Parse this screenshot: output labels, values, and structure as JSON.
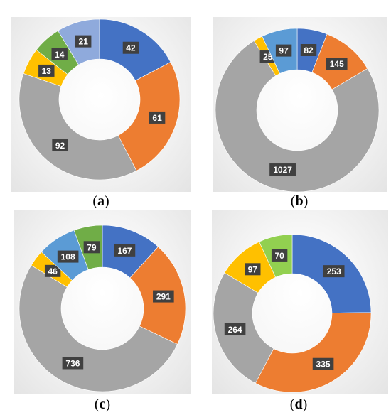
{
  "palette": {
    "blue": "#4472c4",
    "orange": "#ed7d31",
    "gray": "#a5a5a5",
    "yellow": "#ffc000",
    "sky": "#5b9bd5",
    "green": "#70ad47",
    "lightblue": "#8faadc",
    "lime": "#92d050",
    "label_bg": "#404040",
    "label_fg": "#ffffff"
  },
  "chart_data": [
    {
      "type": "pie",
      "variant": "donut",
      "caption_prefix": "(",
      "caption_letter": "a",
      "caption_suffix": ")",
      "slices": [
        {
          "value": 42,
          "color": "#4472c4"
        },
        {
          "value": 61,
          "color": "#ed7d31"
        },
        {
          "value": 92,
          "color": "#a5a5a5"
        },
        {
          "value": 13,
          "color": "#ffc000"
        },
        {
          "value": 14,
          "color": "#70ad47"
        },
        {
          "value": 21,
          "color": "#8faadc"
        }
      ]
    },
    {
      "type": "pie",
      "variant": "donut",
      "caption_prefix": "(",
      "caption_letter": "b",
      "caption_suffix": ")",
      "slices": [
        {
          "value": 82,
          "color": "#4472c4"
        },
        {
          "value": 145,
          "color": "#ed7d31"
        },
        {
          "value": 1027,
          "color": "#a5a5a5"
        },
        {
          "value": 25,
          "color": "#ffc000"
        },
        {
          "value": 97,
          "color": "#5b9bd5"
        }
      ]
    },
    {
      "type": "pie",
      "variant": "donut",
      "caption_prefix": "(",
      "caption_letter": "c",
      "caption_suffix": ")",
      "slices": [
        {
          "value": 167,
          "color": "#4472c4"
        },
        {
          "value": 291,
          "color": "#ed7d31"
        },
        {
          "value": 736,
          "color": "#a5a5a5"
        },
        {
          "value": 46,
          "color": "#ffc000"
        },
        {
          "value": 108,
          "color": "#5b9bd5"
        },
        {
          "value": 79,
          "color": "#70ad47"
        }
      ]
    },
    {
      "type": "pie",
      "variant": "donut",
      "caption_prefix": "(",
      "caption_letter": "d",
      "caption_suffix": ")",
      "slices": [
        {
          "value": 253,
          "color": "#4472c4"
        },
        {
          "value": 335,
          "color": "#ed7d31"
        },
        {
          "value": 264,
          "color": "#a5a5a5"
        },
        {
          "value": 97,
          "color": "#ffc000"
        },
        {
          "value": 70,
          "color": "#92d050"
        }
      ]
    }
  ]
}
